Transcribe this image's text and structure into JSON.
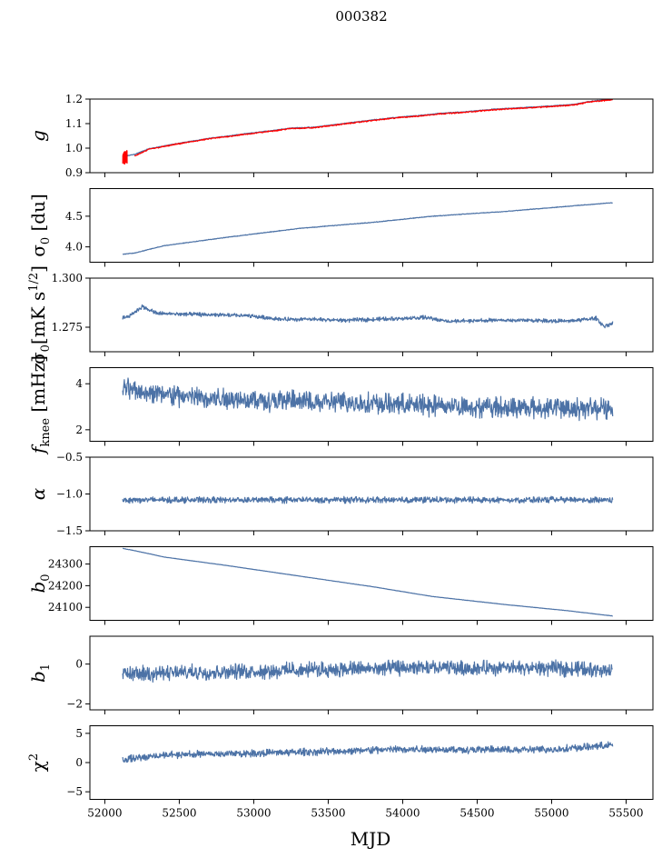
{
  "title": "000382",
  "chart_data": {
    "type": "line",
    "xlabel": "MJD",
    "xlim": [
      51900,
      55680
    ],
    "xticks": [
      52000,
      52500,
      53000,
      53500,
      54000,
      54500,
      55000,
      55500
    ],
    "x_range": [
      52120,
      55410
    ],
    "colors": {
      "main": "#4c72a6",
      "fit": "#ff0000"
    },
    "panels": [
      {
        "key": "g",
        "ylabel": "g",
        "ylim": [
          0.9,
          1.2
        ],
        "yticks": [
          "0.9",
          "1.0",
          "1.1",
          "1.2"
        ],
        "series": [
          {
            "kind": "smooth",
            "color_key": "main",
            "points": [
              [
                52120,
                0.965
              ],
              [
                52200,
                0.975
              ],
              [
                52300,
                0.998
              ],
              [
                52500,
                1.02
              ],
              [
                52700,
                1.04
              ],
              [
                52900,
                1.055
              ],
              [
                53100,
                1.07
              ],
              [
                53250,
                1.082
              ],
              [
                53400,
                1.085
              ],
              [
                53600,
                1.1
              ],
              [
                53800,
                1.115
              ],
              [
                54000,
                1.128
              ],
              [
                54100,
                1.132
              ],
              [
                54250,
                1.142
              ],
              [
                54400,
                1.147
              ],
              [
                54600,
                1.158
              ],
              [
                54800,
                1.165
              ],
              [
                55000,
                1.172
              ],
              [
                55150,
                1.178
              ],
              [
                55250,
                1.19
              ],
              [
                55410,
                1.2
              ]
            ],
            "noise": 0.002
          },
          {
            "kind": "smooth",
            "color_key": "fit",
            "points": [
              [
                52200,
                0.968
              ],
              [
                52300,
                0.996
              ],
              [
                52500,
                1.018
              ],
              [
                52700,
                1.038
              ],
              [
                52900,
                1.053
              ],
              [
                53100,
                1.068
              ],
              [
                53250,
                1.08
              ],
              [
                53400,
                1.083
              ],
              [
                53600,
                1.098
              ],
              [
                53800,
                1.113
              ],
              [
                54000,
                1.126
              ],
              [
                54100,
                1.13
              ],
              [
                54250,
                1.14
              ],
              [
                54400,
                1.145
              ],
              [
                54600,
                1.156
              ],
              [
                54800,
                1.163
              ],
              [
                55000,
                1.17
              ],
              [
                55150,
                1.176
              ],
              [
                55250,
                1.188
              ],
              [
                55410,
                1.198
              ]
            ],
            "noise": 0.003
          },
          {
            "kind": "burst",
            "color_key": "fit",
            "x0": 52120,
            "x1": 52150,
            "center": 0.962,
            "amp": 0.028
          }
        ]
      },
      {
        "key": "sigma0_du",
        "ylabel": "σ0 [du]",
        "ylim": [
          3.75,
          4.95
        ],
        "yticks": [
          "4.0",
          "4.5"
        ],
        "series": [
          {
            "kind": "smooth",
            "color_key": "main",
            "points": [
              [
                52120,
                3.88
              ],
              [
                52200,
                3.9
              ],
              [
                52400,
                4.02
              ],
              [
                52800,
                4.15
              ],
              [
                53300,
                4.3
              ],
              [
                53800,
                4.4
              ],
              [
                54200,
                4.5
              ],
              [
                54700,
                4.58
              ],
              [
                55100,
                4.66
              ],
              [
                55410,
                4.72
              ]
            ],
            "noise": 0.006
          }
        ]
      },
      {
        "key": "sigma0_mk",
        "ylabel": "σ0[mK s1/2]",
        "ylim": [
          1.2625,
          1.3
        ],
        "yticks": [
          "1.275",
          "1.300"
        ],
        "series": [
          {
            "kind": "smooth",
            "color_key": "main",
            "points": [
              [
                52120,
                1.2795
              ],
              [
                52180,
                1.2815
              ],
              [
                52250,
                1.2855
              ],
              [
                52350,
                1.282
              ],
              [
                52600,
                1.2815
              ],
              [
                52900,
                1.281
              ],
              [
                53000,
                1.2805
              ],
              [
                53200,
                1.279
              ],
              [
                53400,
                1.279
              ],
              [
                53600,
                1.2785
              ],
              [
                53800,
                1.279
              ],
              [
                54000,
                1.2795
              ],
              [
                54150,
                1.28
              ],
              [
                54300,
                1.278
              ],
              [
                54600,
                1.2785
              ],
              [
                54900,
                1.2785
              ],
              [
                55100,
                1.278
              ],
              [
                55300,
                1.2795
              ],
              [
                55350,
                1.2755
              ],
              [
                55410,
                1.277
              ]
            ],
            "noise": 0.0012
          }
        ]
      },
      {
        "key": "fknee",
        "ylabel": "fknee [mHz]",
        "ylim": [
          1.5,
          4.7
        ],
        "yticks": [
          "2",
          "4"
        ],
        "series": [
          {
            "kind": "smooth",
            "color_key": "main",
            "points": [
              [
                52120,
                3.8
              ],
              [
                52500,
                3.45
              ],
              [
                53000,
                3.3
              ],
              [
                53500,
                3.2
              ],
              [
                54000,
                3.1
              ],
              [
                54500,
                3.0
              ],
              [
                55000,
                2.95
              ],
              [
                55410,
                2.9
              ]
            ],
            "noise": 0.55
          }
        ]
      },
      {
        "key": "alpha",
        "ylabel": "α",
        "ylim": [
          -1.5,
          -0.5
        ],
        "yticks": [
          "−1.5",
          "−1.0",
          "−0.5"
        ],
        "series": [
          {
            "kind": "smooth",
            "color_key": "main",
            "points": [
              [
                52120,
                -1.08
              ],
              [
                53000,
                -1.08
              ],
              [
                54000,
                -1.08
              ],
              [
                55410,
                -1.08
              ]
            ],
            "noise": 0.05
          }
        ]
      },
      {
        "key": "b0",
        "ylabel": "b0",
        "ylim": [
          24040,
          24380
        ],
        "yticks": [
          "24100",
          "24200",
          "24300"
        ],
        "series": [
          {
            "kind": "smooth",
            "color_key": "main",
            "points": [
              [
                52120,
                24372
              ],
              [
                52200,
                24362
              ],
              [
                52400,
                24332
              ],
              [
                52800,
                24295
              ],
              [
                53300,
                24245
              ],
              [
                53800,
                24195
              ],
              [
                54200,
                24150
              ],
              [
                54700,
                24112
              ],
              [
                55100,
                24085
              ],
              [
                55410,
                24060
              ]
            ],
            "noise": 0.8
          }
        ]
      },
      {
        "key": "b1",
        "ylabel": "b1",
        "ylim": [
          -2.3,
          1.4
        ],
        "yticks": [
          "−2",
          "0"
        ],
        "series": [
          {
            "kind": "smooth",
            "color_key": "main",
            "points": [
              [
                52120,
                -0.5
              ],
              [
                53000,
                -0.35
              ],
              [
                54000,
                -0.2
              ],
              [
                55000,
                -0.2
              ],
              [
                55410,
                -0.3
              ]
            ],
            "noise": 0.45
          }
        ]
      },
      {
        "key": "chi2",
        "ylabel": "χ2",
        "ylim": [
          -6.3,
          6.3
        ],
        "yticks": [
          "−5",
          "0",
          "5"
        ],
        "series": [
          {
            "kind": "smooth",
            "color_key": "main",
            "points": [
              [
                52120,
                0.5
              ],
              [
                52400,
                1.3
              ],
              [
                53000,
                1.6
              ],
              [
                53500,
                1.9
              ],
              [
                54000,
                2.3
              ],
              [
                54500,
                2.2
              ],
              [
                55000,
                2.2
              ],
              [
                55410,
                3.0
              ]
            ],
            "noise": 0.75
          }
        ]
      }
    ]
  }
}
